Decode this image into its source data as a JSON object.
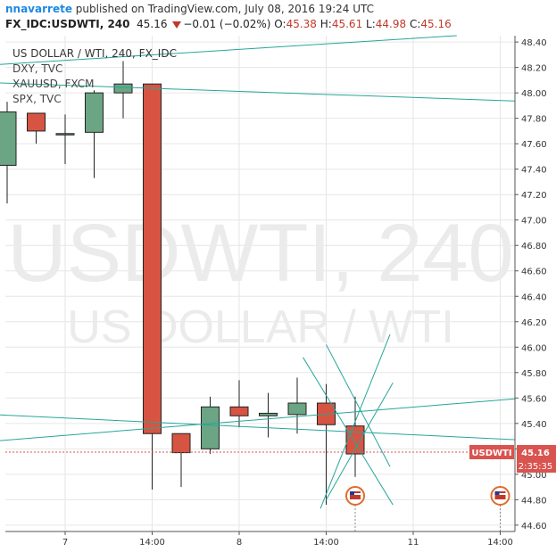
{
  "header": {
    "user": "nnavarrete",
    "published_text": "published on TradingView.com, July 08, 2016 19:24 UTC",
    "symbol": "FX_IDC:USDWTI, 240",
    "last": "45.16",
    "change": "−0.01 (−0.02%)",
    "o_label": "O:",
    "o": "45.38",
    "h_label": "H:",
    "h": "45.61",
    "l_label": "L:",
    "l": "44.98",
    "c_label": "C:",
    "c": "45.16"
  },
  "legend": {
    "main": "US DOLLAR / WTI, 240, FX_IDC",
    "items": [
      "DXY, TVC",
      "XAUUSD, FXCM",
      "SPX, TVC"
    ]
  },
  "watermark": {
    "line1": "USDWTI, 240",
    "line2": "US DOLLAR / WTI"
  },
  "price_tag": {
    "label": "USDWTI",
    "value": "45.16",
    "countdown": "2:35:35"
  },
  "colors": {
    "up": "#6ba583",
    "down": "#d75442",
    "outline": "#222222",
    "trend": "#26a69a",
    "grid": "#e6e6e6",
    "tag": "#d9534f"
  },
  "chart_data": {
    "type": "candlestick",
    "y_ticks": [
      "48.40",
      "48.20",
      "48.00",
      "47.80",
      "47.60",
      "47.40",
      "47.20",
      "47.00",
      "46.80",
      "46.60",
      "46.40",
      "46.20",
      "46.00",
      "45.80",
      "45.60",
      "45.40",
      "45.20",
      "45.00",
      "44.80",
      "44.60"
    ],
    "ylim": [
      44.55,
      48.45
    ],
    "x_ticks": [
      {
        "label": "7",
        "bar": 2
      },
      {
        "label": "14:00",
        "bar": 5
      },
      {
        "label": "8",
        "bar": 8
      },
      {
        "label": "14:00",
        "bar": 11
      },
      {
        "label": "11",
        "bar": 14
      },
      {
        "label": "14:00",
        "bar": 17
      }
    ],
    "candles": [
      {
        "bar": 0,
        "open": 47.43,
        "high": 47.93,
        "low": 47.13,
        "close": 47.85
      },
      {
        "bar": 1,
        "open": 47.84,
        "high": 47.84,
        "low": 47.6,
        "close": 47.7
      },
      {
        "bar": 2,
        "open": 47.68,
        "high": 47.83,
        "low": 47.44,
        "close": 47.68
      },
      {
        "bar": 3,
        "open": 47.69,
        "high": 48.02,
        "low": 47.33,
        "close": 48.0
      },
      {
        "bar": 4,
        "open": 48.0,
        "high": 48.25,
        "low": 47.8,
        "close": 48.07
      },
      {
        "bar": 5,
        "open": 48.07,
        "high": 48.07,
        "low": 44.88,
        "close": 45.32
      },
      {
        "bar": 6,
        "open": 45.32,
        "high": 45.32,
        "low": 44.9,
        "close": 45.17
      },
      {
        "bar": 7,
        "open": 45.2,
        "high": 45.61,
        "low": 45.16,
        "close": 45.53
      },
      {
        "bar": 8,
        "open": 45.53,
        "high": 45.74,
        "low": 45.37,
        "close": 45.46
      },
      {
        "bar": 9,
        "open": 45.46,
        "high": 45.64,
        "low": 45.29,
        "close": 45.48
      },
      {
        "bar": 10,
        "open": 45.47,
        "high": 45.76,
        "low": 45.32,
        "close": 45.56
      },
      {
        "bar": 11,
        "open": 45.56,
        "high": 45.71,
        "low": 44.76,
        "close": 45.39
      },
      {
        "bar": 12,
        "open": 45.38,
        "high": 45.61,
        "low": 44.98,
        "close": 45.16
      }
    ],
    "event_markers": [
      {
        "bar": 12
      },
      {
        "bar": 17
      }
    ],
    "trendlines": [
      {
        "x1": -0.5,
        "y1": 48.22,
        "x2": 15.5,
        "y2": 48.45
      },
      {
        "x1": -0.5,
        "y1": 48.08,
        "x2": 19.5,
        "y2": 47.92
      },
      {
        "x1": -0.5,
        "y1": 45.47,
        "x2": 19.5,
        "y2": 45.25
      },
      {
        "x1": -0.5,
        "y1": 45.26,
        "x2": 19.5,
        "y2": 45.63
      },
      {
        "x1": 10.2,
        "y1": 45.92,
        "x2": 13.3,
        "y2": 44.76
      },
      {
        "x1": 11.0,
        "y1": 46.02,
        "x2": 13.2,
        "y2": 45.06
      },
      {
        "x1": 10.8,
        "y1": 44.73,
        "x2": 13.2,
        "y2": 46.1
      },
      {
        "x1": 11.0,
        "y1": 44.8,
        "x2": 13.3,
        "y2": 45.72
      }
    ]
  }
}
